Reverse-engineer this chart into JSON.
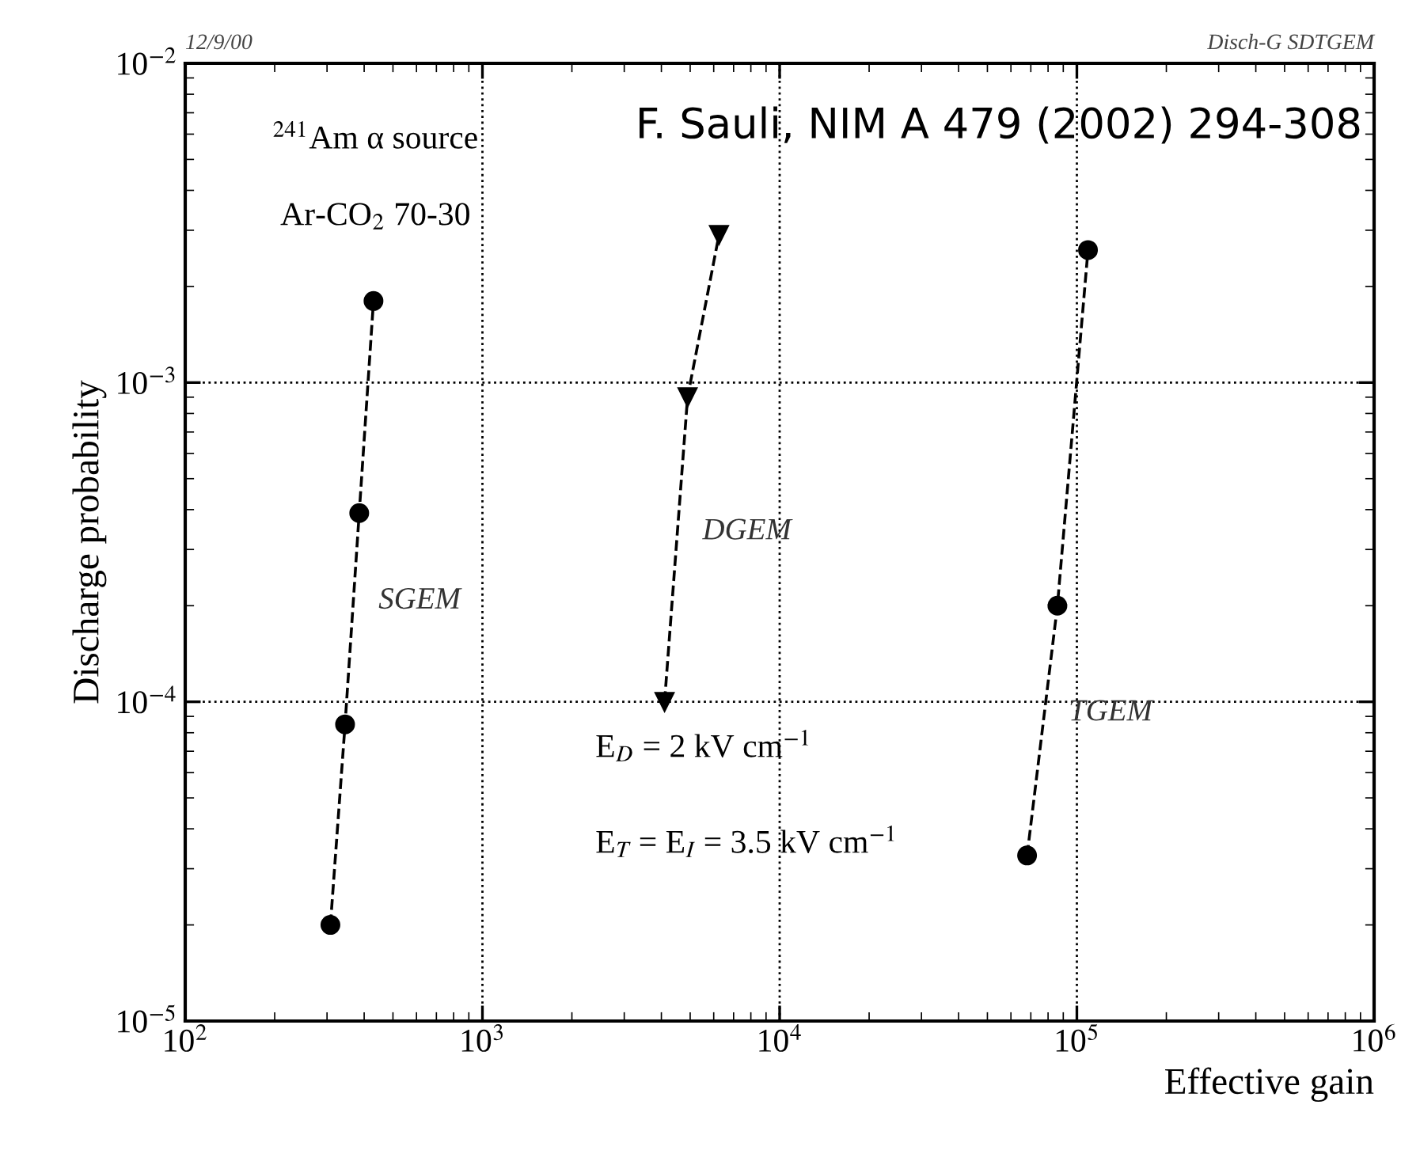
{
  "chart_data": {
    "type": "line",
    "xlabel": "Effective gain",
    "ylabel": "Discharge probability",
    "log": "xy",
    "xlim": [
      100,
      1000000
    ],
    "ylim": [
      1e-05,
      0.01
    ],
    "xticks": [
      {
        "value": 100,
        "label": "10$^{2}$"
      },
      {
        "value": 1000,
        "label": "10$^{3}$"
      },
      {
        "value": 10000,
        "label": "10$^{4}$"
      },
      {
        "value": 100000,
        "label": "10$^{5}$"
      },
      {
        "value": 1000000,
        "label": "10$^{6}$"
      }
    ],
    "yticks": [
      {
        "value": 1e-05,
        "label": "10$^{−5}$"
      },
      {
        "value": 0.0001,
        "label": "10$^{−4}$"
      },
      {
        "value": 0.001,
        "label": "10$^{−3}$"
      },
      {
        "value": 0.01,
        "label": "10$^{−2}$"
      }
    ],
    "grid": true,
    "legend": false,
    "line_style": "dashed",
    "series": [
      {
        "name": "SGEM",
        "color": "#000000",
        "marker": "circle",
        "x": [
          308,
          345,
          385,
          430
        ],
        "values": [
          2e-05,
          8.5e-05,
          0.00039,
          0.0018
        ]
      },
      {
        "name": "DGEM",
        "color": "#000000",
        "marker": "triangle",
        "x": [
          4100,
          4900,
          6250
        ],
        "values": [
          0.0001,
          0.0009,
          0.0029
        ]
      },
      {
        "name": "TGEM",
        "color": "#000000",
        "marker": "circle",
        "x": [
          68000,
          86000,
          109000
        ],
        "values": [
          3.3e-05,
          0.0002,
          0.0026
        ]
      }
    ],
    "annotations": [
      "12/9/00",
      "Disch-G SDTGEM",
      "F. Sauli, NIM A 479 (2002) 294-308",
      "$^{241}$Am α source",
      "Ar-CO$_{2}$ 70-30",
      "E$_{D}$ = 2 kV cm$^{−1}$",
      "E$_{T}$ = E$_{I}$ = 3.5 kV cm$^{−1}$"
    ]
  }
}
